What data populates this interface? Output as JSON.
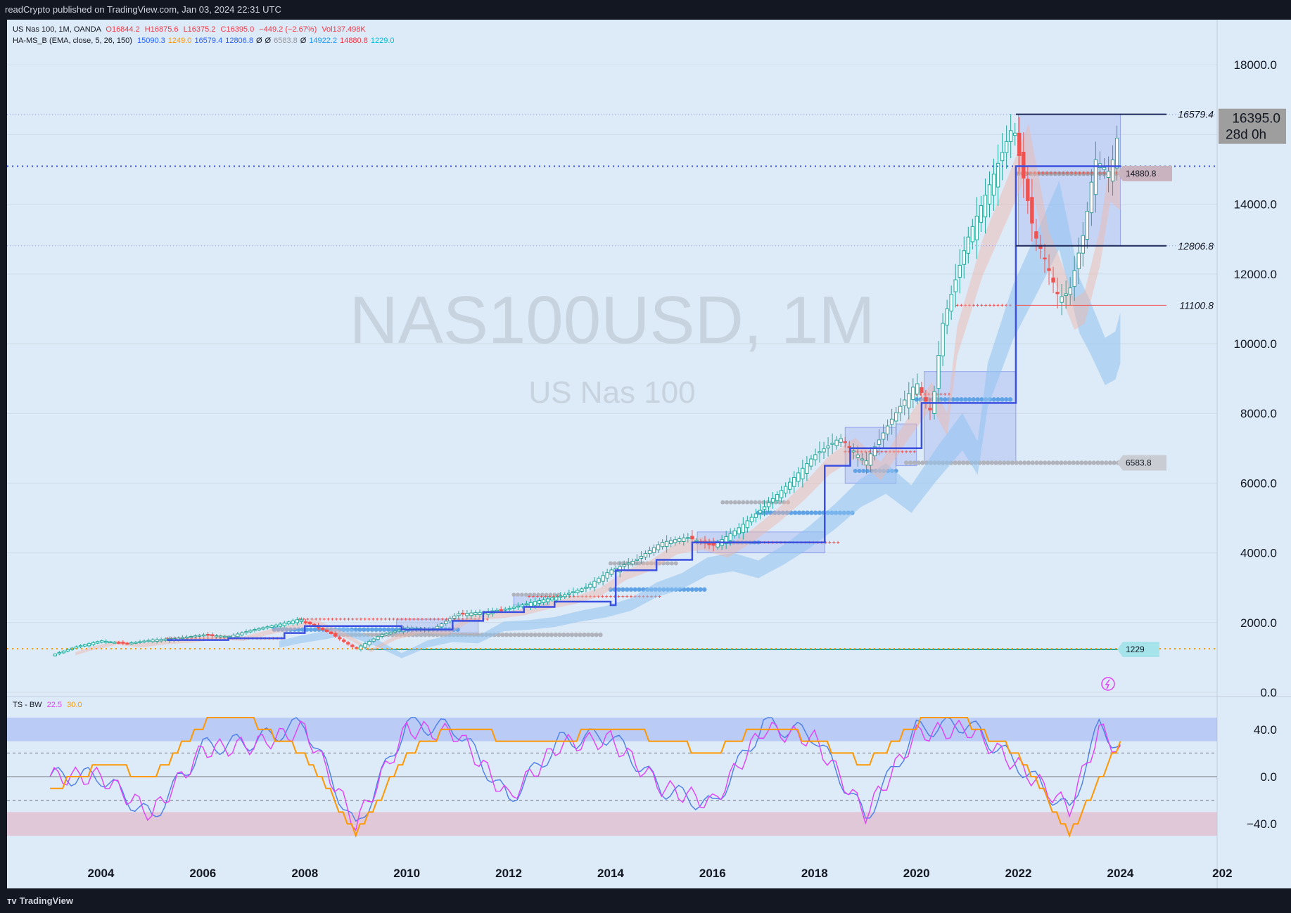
{
  "header": {
    "publisher": "readCrypto published on TradingView.com, Jan 03, 2024 22:31 UTC"
  },
  "legend_main": {
    "symbol": "US Nas 100, 1M, OANDA",
    "open": "O16844.2",
    "high": "H16875.6",
    "low": "L16375.2",
    "close": "C16395.0",
    "change": "−449.2 (−2.67%)",
    "vol": "Vol137.498K"
  },
  "legend_indicator": {
    "name": "HA-MS_B (EMA, close, 5, 26, 150)",
    "values": [
      {
        "text": "15090.3",
        "color": "#2962ff"
      },
      {
        "text": "1249.0",
        "color": "#ff9800"
      },
      {
        "text": "16579.4",
        "color": "#2962ff"
      },
      {
        "text": "12806.8",
        "color": "#2962ff"
      },
      {
        "text": "Ø",
        "color": "#131722"
      },
      {
        "text": "Ø",
        "color": "#131722"
      },
      {
        "text": "6583.8",
        "color": "#9598a1"
      },
      {
        "text": "Ø",
        "color": "#131722"
      },
      {
        "text": "14922.2",
        "color": "#2196f3"
      },
      {
        "text": "14880.8",
        "color": "#f23645"
      },
      {
        "text": "1229.0",
        "color": "#00bcd4"
      }
    ]
  },
  "legend_osc": {
    "name": "TS - BW",
    "v1": "22.5",
    "v2": "30.0",
    "v1_color": "#e040fb",
    "v2_color": "#ff9800"
  },
  "watermark": {
    "title": "NAS100USD, 1M",
    "subtitle": "US Nas 100"
  },
  "price_axis": {
    "ticks": [
      "18000.0",
      "16000.0",
      "14000.0",
      "12000.0",
      "10000.0",
      "8000.0",
      "6000.0",
      "4000.0",
      "2000.0",
      "0.0"
    ],
    "last_price": "16395.0",
    "countdown": "28d 0h"
  },
  "osc_axis": {
    "ticks": [
      "40.0",
      "0.0",
      "−40.0"
    ]
  },
  "time_axis": {
    "ticks": [
      "2004",
      "2006",
      "2008",
      "2010",
      "2012",
      "2014",
      "2016",
      "2018",
      "2020",
      "2022",
      "2024",
      "202"
    ]
  },
  "level_labels": {
    "l16579": "16579.4",
    "l12806": "12806.8",
    "l11100": "11100.8",
    "l14880": "14880.8",
    "l6583": "6583.8",
    "l1229": "1229"
  },
  "colors": {
    "background": "#ddeaf7",
    "candle_up": "#26a69a",
    "candle_down": "#ef5350",
    "step_line": "#3b50e0",
    "ema_band": "#90c2f0",
    "osc_blue": "#4c7ee8",
    "osc_magenta": "#e040fb",
    "osc_orange": "#ff9800"
  },
  "footer": {
    "brand": "TradingView"
  },
  "chart_data": [
    {
      "type": "candlestick",
      "title": "NAS100USD, 1M",
      "subtitle": "US Nas 100",
      "ylim": [
        0,
        18000
      ],
      "xlim": [
        2003.0,
        2026.0
      ],
      "x": [
        2003.0,
        2003.5,
        2004.0,
        2004.5,
        2005.0,
        2005.5,
        2006.0,
        2006.5,
        2007.0,
        2007.5,
        2007.9,
        2008.5,
        2009.0,
        2009.5,
        2010.0,
        2010.5,
        2011.0,
        2011.5,
        2012.0,
        2012.5,
        2013.0,
        2013.5,
        2014.0,
        2014.5,
        2015.0,
        2015.5,
        2016.0,
        2016.5,
        2017.0,
        2017.5,
        2018.0,
        2018.5,
        2019.0,
        2019.5,
        2020.0,
        2020.3,
        2020.5,
        2021.0,
        2021.5,
        2021.9,
        2022.3,
        2022.5,
        2022.8,
        2023.0,
        2023.3,
        2023.5,
        2023.8,
        2024.0
      ],
      "close": [
        1050,
        1300,
        1480,
        1400,
        1500,
        1550,
        1650,
        1600,
        1800,
        1950,
        2100,
        1700,
        1250,
        1650,
        1850,
        1800,
        2250,
        2300,
        2400,
        2600,
        2750,
        3000,
        3500,
        3800,
        4300,
        4450,
        4200,
        4700,
        5300,
        6000,
        6800,
        7300,
        6600,
        7800,
        8900,
        8000,
        10500,
        13000,
        14800,
        16300,
        13200,
        12500,
        11300,
        11500,
        13300,
        15300,
        14900,
        16395
      ],
      "levels": [
        {
          "price": 16579.4,
          "label": "16579.4"
        },
        {
          "price": 12806.8,
          "label": "12806.8"
        },
        {
          "price": 11100.8,
          "label": "11100.8"
        },
        {
          "price": 14880.8,
          "label": "14880.8"
        },
        {
          "price": 6583.8,
          "label": "6583.8"
        },
        {
          "price": 1229,
          "label": "1229"
        }
      ]
    },
    {
      "type": "line",
      "title": "TS - BW",
      "ylim": [
        -50,
        50
      ],
      "x": [
        2003.0,
        2004.0,
        2005.0,
        2006.0,
        2007.0,
        2008.0,
        2009.0,
        2010.0,
        2011.0,
        2012.0,
        2013.0,
        2014.0,
        2015.0,
        2016.0,
        2017.0,
        2018.0,
        2019.0,
        2020.0,
        2021.0,
        2022.0,
        2023.0,
        2023.6,
        2024.0
      ],
      "series": [
        {
          "name": "22.5",
          "values": [
            0,
            0,
            -35,
            25,
            30,
            45,
            -45,
            45,
            40,
            -20,
            30,
            35,
            -10,
            -25,
            45,
            35,
            -35,
            40,
            45,
            10,
            -30,
            45,
            22.5
          ]
        },
        {
          "name": "30.0",
          "values": [
            -10,
            10,
            0,
            45,
            45,
            20,
            -50,
            20,
            45,
            30,
            30,
            45,
            30,
            20,
            45,
            30,
            10,
            45,
            45,
            20,
            -50,
            0,
            30
          ]
        }
      ]
    }
  ]
}
